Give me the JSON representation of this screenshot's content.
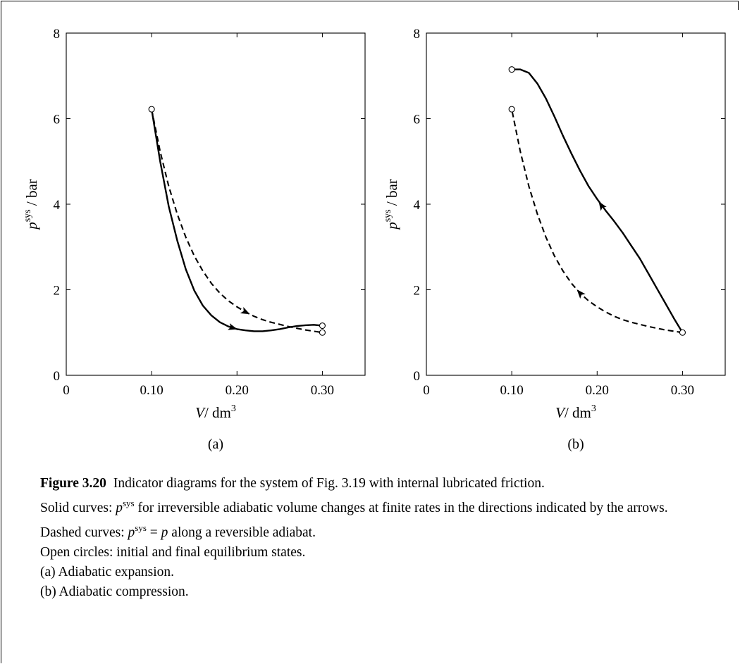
{
  "chart_data": [
    {
      "type": "line",
      "subplot_label": "(a)",
      "xlabel": {
        "sym": "V",
        "unit": "dm",
        "unit_exp": "3"
      },
      "ylabel": {
        "sym": "p",
        "sup": "sys",
        "unit": "bar"
      },
      "xlim": [
        0,
        0.35
      ],
      "ylim": [
        0,
        8
      ],
      "xticks": [
        0,
        0.1,
        0.2,
        0.3
      ],
      "xtick_labels": [
        "0",
        "0.10",
        "0.20",
        "0.30"
      ],
      "yticks": [
        0,
        2,
        4,
        6,
        8
      ],
      "ytick_labels": [
        "0",
        "2",
        "4",
        "6",
        "8"
      ],
      "series": [
        {
          "style": "solid",
          "points": [
            [
              0.1,
              6.22
            ],
            [
              0.11,
              5.0
            ],
            [
              0.12,
              3.95
            ],
            [
              0.13,
              3.15
            ],
            [
              0.14,
              2.48
            ],
            [
              0.15,
              1.98
            ],
            [
              0.16,
              1.63
            ],
            [
              0.17,
              1.4
            ],
            [
              0.18,
              1.24
            ],
            [
              0.19,
              1.14
            ],
            [
              0.2,
              1.08
            ],
            [
              0.21,
              1.05
            ],
            [
              0.22,
              1.03
            ],
            [
              0.23,
              1.03
            ],
            [
              0.24,
              1.05
            ],
            [
              0.25,
              1.08
            ],
            [
              0.26,
              1.12
            ],
            [
              0.27,
              1.15
            ],
            [
              0.28,
              1.17
            ],
            [
              0.29,
              1.18
            ],
            [
              0.3,
              1.16
            ]
          ],
          "arrows": [
            {
              "x": 0.195,
              "dir": "forward"
            }
          ]
        },
        {
          "style": "dashed",
          "points": [
            [
              0.1,
              6.22
            ],
            [
              0.11,
              5.23
            ],
            [
              0.12,
              4.42
            ],
            [
              0.13,
              3.77
            ],
            [
              0.14,
              3.23
            ],
            [
              0.15,
              2.79
            ],
            [
              0.16,
              2.44
            ],
            [
              0.17,
              2.15
            ],
            [
              0.18,
              1.92
            ],
            [
              0.19,
              1.74
            ],
            [
              0.2,
              1.6
            ],
            [
              0.21,
              1.48
            ],
            [
              0.22,
              1.38
            ],
            [
              0.23,
              1.3
            ],
            [
              0.24,
              1.24
            ],
            [
              0.25,
              1.19
            ],
            [
              0.26,
              1.14
            ],
            [
              0.27,
              1.1
            ],
            [
              0.28,
              1.06
            ],
            [
              0.29,
              1.03
            ],
            [
              0.3,
              1.0
            ]
          ],
          "arrows": [
            {
              "x": 0.21,
              "dir": "forward"
            }
          ]
        }
      ],
      "markers": [
        [
          0.1,
          6.22
        ],
        [
          0.3,
          1.16
        ],
        [
          0.3,
          1.0
        ]
      ]
    },
    {
      "type": "line",
      "subplot_label": "(b)",
      "xlabel": {
        "sym": "V",
        "unit": "dm",
        "unit_exp": "3"
      },
      "ylabel": {
        "sym": "p",
        "sup": "sys",
        "unit": "bar"
      },
      "xlim": [
        0,
        0.35
      ],
      "ylim": [
        0,
        8
      ],
      "xticks": [
        0,
        0.1,
        0.2,
        0.3
      ],
      "xtick_labels": [
        "0",
        "0.10",
        "0.20",
        "0.30"
      ],
      "yticks": [
        0,
        2,
        4,
        6,
        8
      ],
      "ytick_labels": [
        "0",
        "2",
        "4",
        "6",
        "8"
      ],
      "series": [
        {
          "style": "solid",
          "points": [
            [
              0.3,
              1.0
            ],
            [
              0.29,
              1.33
            ],
            [
              0.28,
              1.68
            ],
            [
              0.27,
              2.03
            ],
            [
              0.26,
              2.38
            ],
            [
              0.25,
              2.73
            ],
            [
              0.24,
              3.03
            ],
            [
              0.23,
              3.33
            ],
            [
              0.22,
              3.6
            ],
            [
              0.21,
              3.85
            ],
            [
              0.2,
              4.12
            ],
            [
              0.19,
              4.42
            ],
            [
              0.18,
              4.78
            ],
            [
              0.17,
              5.18
            ],
            [
              0.16,
              5.6
            ],
            [
              0.15,
              6.05
            ],
            [
              0.14,
              6.47
            ],
            [
              0.13,
              6.82
            ],
            [
              0.12,
              7.07
            ],
            [
              0.11,
              7.15
            ],
            [
              0.1,
              7.15
            ]
          ],
          "arrows": [
            {
              "x": 0.205,
              "dir": "forward"
            }
          ]
        },
        {
          "style": "dashed",
          "points": [
            [
              0.3,
              1.0
            ],
            [
              0.29,
              1.03
            ],
            [
              0.28,
              1.06
            ],
            [
              0.27,
              1.1
            ],
            [
              0.26,
              1.14
            ],
            [
              0.25,
              1.19
            ],
            [
              0.24,
              1.24
            ],
            [
              0.23,
              1.3
            ],
            [
              0.22,
              1.38
            ],
            [
              0.21,
              1.48
            ],
            [
              0.2,
              1.6
            ],
            [
              0.19,
              1.74
            ],
            [
              0.18,
              1.92
            ],
            [
              0.17,
              2.15
            ],
            [
              0.16,
              2.44
            ],
            [
              0.15,
              2.79
            ],
            [
              0.14,
              3.23
            ],
            [
              0.13,
              3.77
            ],
            [
              0.12,
              4.42
            ],
            [
              0.11,
              5.23
            ],
            [
              0.1,
              6.22
            ]
          ],
          "arrows": [
            {
              "x": 0.18,
              "dir": "forward"
            }
          ]
        }
      ],
      "markers": [
        [
          0.1,
          7.15
        ],
        [
          0.1,
          6.22
        ],
        [
          0.3,
          1.0
        ]
      ]
    }
  ],
  "caption": {
    "fig_num": "Figure 3.20",
    "title": "Indicator diagrams for the system of Fig. 3.19 with internal lubricated friction.",
    "solid": "Solid curves: ",
    "solid_p": "p",
    "solid_sup": "sys",
    "solid_rest": " for irreversible adiabatic volume changes at finite rates in the directions indicated by the arrows.",
    "dashed": "Dashed curves: ",
    "dashed_p": "p",
    "dashed_sup": "sys",
    "dashed_eq": " = ",
    "dashed_p2": "p",
    "dashed_rest": " along a reversible adiabat.",
    "circles": "Open circles: initial and final equilibrium states.",
    "a": "(a) Adiabatic expansion.",
    "b": "(b) Adiabatic compression."
  }
}
